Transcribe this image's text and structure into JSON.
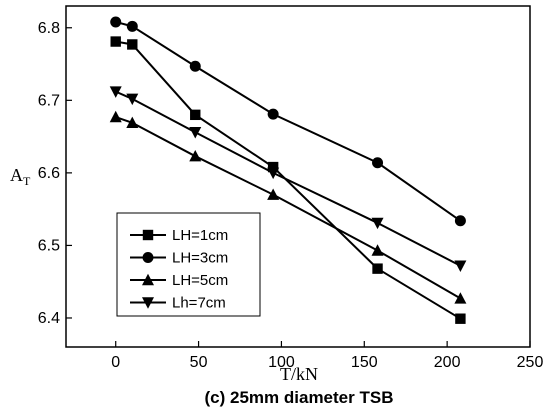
{
  "chart_data": {
    "type": "line",
    "caption": "(c) 25mm diameter TSB",
    "xlabel": "T/kN",
    "ylabel_main": "A",
    "ylabel_sub": "T",
    "xlim": [
      -30,
      250
    ],
    "ylim": [
      6.36,
      6.83
    ],
    "xticks": [
      0,
      50,
      100,
      150,
      200,
      250
    ],
    "yticks": [
      6.4,
      6.5,
      6.6,
      6.7,
      6.8
    ],
    "grid": false,
    "legend_position": "lower-left",
    "series": [
      {
        "name": "LH=1cm",
        "marker": "square",
        "x": [
          0,
          10,
          48,
          95,
          158,
          208
        ],
        "y": [
          6.781,
          6.777,
          6.68,
          6.608,
          6.468,
          6.399
        ]
      },
      {
        "name": "LH=3cm",
        "marker": "circle",
        "x": [
          0,
          10,
          48,
          95,
          158,
          208
        ],
        "y": [
          6.808,
          6.802,
          6.747,
          6.681,
          6.614,
          6.534
        ]
      },
      {
        "name": "LH=5cm",
        "marker": "triangle-up",
        "x": [
          0,
          10,
          48,
          95,
          158,
          208
        ],
        "y": [
          6.677,
          6.669,
          6.623,
          6.57,
          6.493,
          6.427
        ]
      },
      {
        "name": "Lh=7cm",
        "marker": "triangle-down",
        "x": [
          0,
          10,
          48,
          95,
          158,
          208
        ],
        "y": [
          6.712,
          6.702,
          6.656,
          6.6,
          6.531,
          6.472
        ]
      }
    ]
  }
}
